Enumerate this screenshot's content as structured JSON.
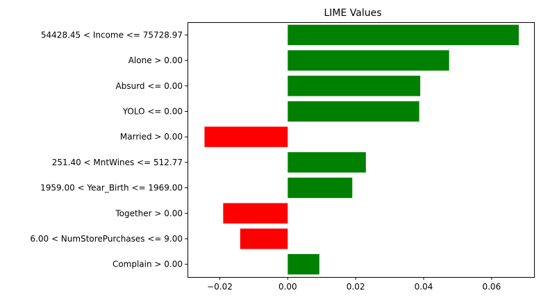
{
  "chart_data": {
    "type": "bar",
    "orientation": "horizontal",
    "title": "LIME Values",
    "xlabel": "",
    "ylabel": "",
    "categories": [
      "54428.45 < Income <= 75728.97",
      "Alone > 0.00",
      "Absurd <= 0.00",
      "YOLO <= 0.00",
      "Married > 0.00",
      "251.40 < MntWines <= 512.77",
      "1959.00 < Year_Birth <= 1969.00",
      "Together > 0.00",
      "6.00 < NumStorePurchases <= 9.00",
      "Complain > 0.00"
    ],
    "values": [
      0.068,
      0.0475,
      0.039,
      0.0387,
      -0.0245,
      0.023,
      0.019,
      -0.019,
      -0.014,
      0.0093
    ],
    "xlim": [
      -0.0295,
      0.0725
    ],
    "xticks": [
      -0.02,
      0.0,
      0.02,
      0.04,
      0.06
    ],
    "xtick_labels": [
      "−0.02",
      "0.00",
      "0.02",
      "0.04",
      "0.06"
    ],
    "colors": {
      "positive": "#008000",
      "negative": "#ff0000",
      "axis": "#000000"
    },
    "grid": false,
    "legend": "none"
  }
}
